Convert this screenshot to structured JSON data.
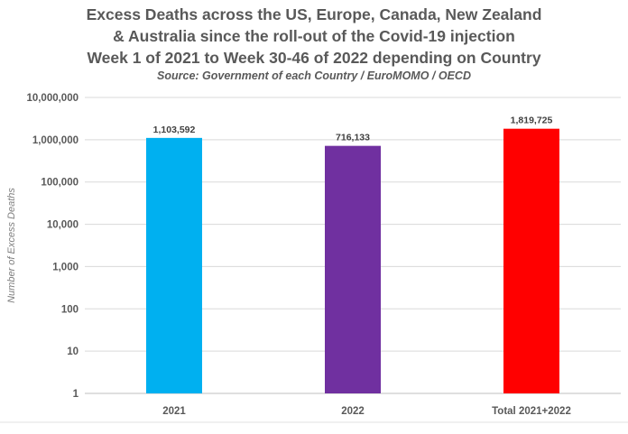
{
  "title_line1": "Excess Deaths across the US, Europe, Canada, New Zealand",
  "title_line2": "& Australia since the roll-out of the Covid-19 injection",
  "title_line3": "Week 1 of 2021 to Week 30-46 of 2022 depending on Country",
  "subtitle": "Source: Government of each Country / EuroMOMO / OECD",
  "chart_data": {
    "type": "bar",
    "title": "Excess Deaths across the US, Europe, Canada, New Zealand & Australia since the roll-out of the Covid-19 injection Week 1 of 2021 to Week 30-46 of 2022 depending on Country",
    "subtitle": "Source: Government of each Country / EuroMOMO / OECD",
    "categories": [
      "2021",
      "2022",
      "Total 2021+2022"
    ],
    "values": [
      1103592,
      716133,
      1819725
    ],
    "data_labels": [
      "1,103,592",
      "716,133",
      "1,819,725"
    ],
    "colors": [
      "#00B0F0",
      "#7030A0",
      "#FF0000"
    ],
    "xlabel": "",
    "ylabel": "Number of Excess Deaths",
    "yscale": "log",
    "ylim": [
      1,
      10000000
    ],
    "yticks": [
      1,
      10,
      100,
      1000,
      10000,
      100000,
      1000000,
      10000000
    ],
    "ytick_labels": [
      "1",
      "10",
      "100",
      "1,000",
      "10,000",
      "100,000",
      "1,000,000",
      "10,000,000"
    ],
    "grid": true
  }
}
